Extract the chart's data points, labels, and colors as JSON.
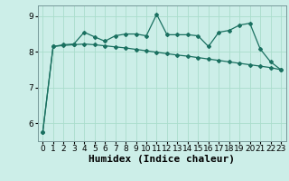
{
  "x": [
    0,
    1,
    2,
    3,
    4,
    5,
    6,
    7,
    8,
    9,
    10,
    11,
    12,
    13,
    14,
    15,
    16,
    17,
    18,
    19,
    20,
    21,
    22,
    23
  ],
  "line1": [
    5.75,
    8.15,
    8.2,
    8.22,
    8.55,
    8.42,
    8.3,
    8.45,
    8.5,
    8.5,
    8.45,
    9.05,
    8.48,
    8.48,
    8.48,
    8.45,
    8.15,
    8.55,
    8.6,
    8.75,
    8.8,
    8.08,
    7.72,
    7.5
  ],
  "line2": [
    5.75,
    8.15,
    8.18,
    8.2,
    8.22,
    8.2,
    8.17,
    8.14,
    8.11,
    8.07,
    8.03,
    7.99,
    7.95,
    7.91,
    7.88,
    7.84,
    7.8,
    7.76,
    7.72,
    7.68,
    7.64,
    7.6,
    7.56,
    7.5
  ],
  "line_color": "#1a7060",
  "bg_color": "#cceee8",
  "grid_color": "#aaddcc",
  "xlabel": "Humidex (Indice chaleur)",
  "xlabel_fontsize": 8,
  "tick_fontsize": 6.5,
  "ylim": [
    5.5,
    9.3
  ],
  "xlim": [
    -0.5,
    23.5
  ],
  "yticks": [
    6,
    7,
    8,
    9
  ],
  "xticks": [
    0,
    1,
    2,
    3,
    4,
    5,
    6,
    7,
    8,
    9,
    10,
    11,
    12,
    13,
    14,
    15,
    16,
    17,
    18,
    19,
    20,
    21,
    22,
    23
  ],
  "marker": "D",
  "markersize": 2.0,
  "linewidth": 0.9
}
